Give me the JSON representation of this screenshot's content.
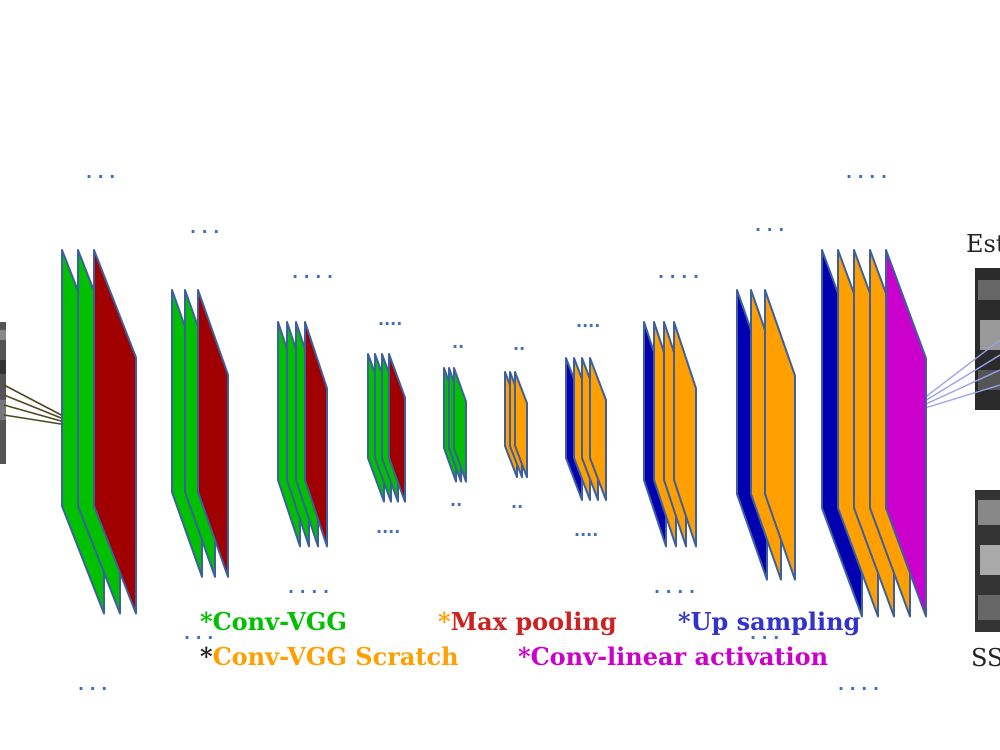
{
  "colors": {
    "conv_vgg": "#00c000",
    "max_pool": "#a00000",
    "up_sample": "#0000b0",
    "conv_scratch": "#ff9f00",
    "conv_linear": "#cc00cc",
    "outline": "#3b5fa0",
    "dots": "#3f6fc0",
    "legend_blue": "#3333cc",
    "legend_red": "#cc2222",
    "legend_black": "#222222"
  },
  "blocks": [
    {
      "name": "block-1",
      "layers": [
        "conv_vgg",
        "conv_vgg",
        "max_pool"
      ]
    },
    {
      "name": "block-2",
      "layers": [
        "conv_vgg",
        "conv_vgg",
        "max_pool"
      ]
    },
    {
      "name": "block-3",
      "layers": [
        "conv_vgg",
        "conv_vgg",
        "conv_vgg",
        "max_pool"
      ]
    },
    {
      "name": "block-4",
      "layers": [
        "conv_vgg",
        "conv_vgg",
        "conv_vgg",
        "max_pool"
      ]
    },
    {
      "name": "block-5",
      "layers": [
        "conv_vgg",
        "conv_vgg",
        "conv_vgg"
      ]
    },
    {
      "name": "block-6",
      "layers": [
        "conv_scratch",
        "conv_scratch",
        "conv_scratch"
      ]
    },
    {
      "name": "block-7",
      "layers": [
        "up_sample",
        "conv_scratch",
        "conv_scratch",
        "conv_scratch"
      ]
    },
    {
      "name": "block-8",
      "layers": [
        "up_sample",
        "conv_scratch",
        "conv_scratch",
        "conv_scratch"
      ]
    },
    {
      "name": "block-9",
      "layers": [
        "up_sample",
        "conv_scratch",
        "conv_scratch"
      ]
    },
    {
      "name": "block-10",
      "layers": [
        "up_sample",
        "conv_scratch",
        "conv_scratch",
        "conv_scratch",
        "conv_linear"
      ]
    }
  ],
  "dot_labels": {
    "three": "· · ·",
    "four": "· · · ·",
    "tight3": "···",
    "tight4": "····",
    "two": "··"
  },
  "legend": {
    "row1": [
      {
        "star": "*",
        "text": "Conv-VGG",
        "star_color": "#00c000",
        "text_color": "#00c000"
      },
      {
        "star": "*",
        "text": "Max pooling",
        "star_color": "#ff9f00",
        "text_color": "#cc2222"
      },
      {
        "star": "*",
        "text": "Up sampling",
        "star_color": "#3333cc",
        "text_color": "#3333cc"
      }
    ],
    "row2": [
      {
        "star": "*",
        "text": "Conv-VGG Scratch",
        "star_color": "#222222",
        "text_color": "#ff9f00"
      },
      {
        "star": "*",
        "text": "Conv-linear activation",
        "star_color": "#cc00cc",
        "text_color": "#cc00cc"
      }
    ]
  },
  "edge_text": {
    "estimate": "Est",
    "ss": "SS"
  }
}
